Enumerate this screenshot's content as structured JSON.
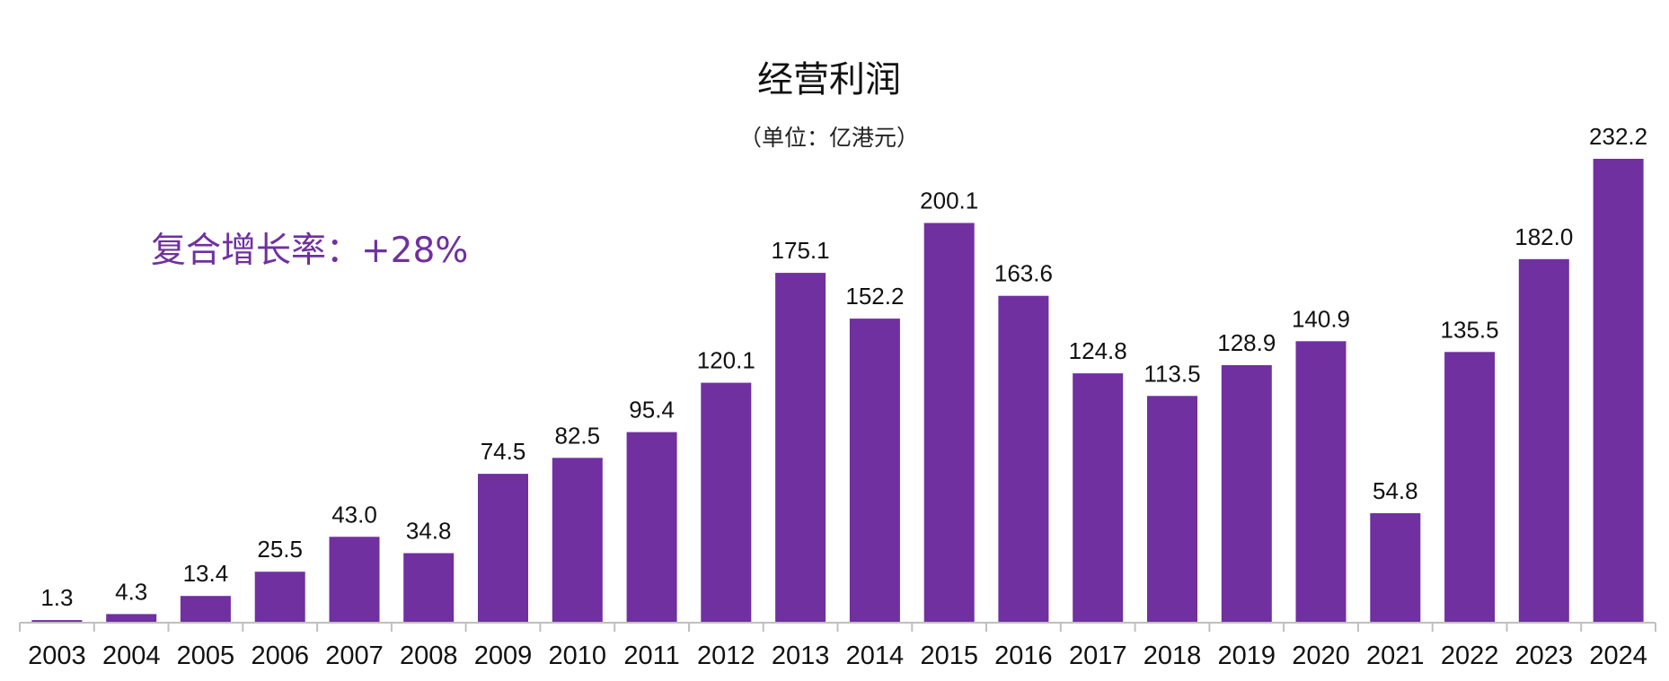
{
  "chart_data": {
    "type": "bar",
    "title": "经营利润",
    "subtitle": "（单位：亿港元）",
    "annotation": "复合增长率：+28%",
    "categories": [
      "2003",
      "2004",
      "2005",
      "2006",
      "2007",
      "2008",
      "2009",
      "2010",
      "2011",
      "2012",
      "2013",
      "2014",
      "2015",
      "2016",
      "2017",
      "2018",
      "2019",
      "2020",
      "2021",
      "2022",
      "2023",
      "2024"
    ],
    "values": [
      1.3,
      4.3,
      13.4,
      25.5,
      43.0,
      34.8,
      74.5,
      82.5,
      95.4,
      120.1,
      175.1,
      152.2,
      200.1,
      163.6,
      124.8,
      113.5,
      128.9,
      140.9,
      54.8,
      135.5,
      182.0,
      232.2
    ],
    "data_labels": [
      "1.3",
      "4.3",
      "13.4",
      "25.5",
      "43.0",
      "34.8",
      "74.5",
      "82.5",
      "95.4",
      "120.1",
      "175.1",
      "152.2",
      "200.1",
      "163.6",
      "124.8",
      "113.5",
      "128.9",
      "140.9",
      "54.8",
      "135.5",
      "182.0",
      "232.2"
    ],
    "xlabel": "",
    "ylabel": "",
    "ylim": [
      0,
      232.2
    ],
    "grid": false,
    "bar_color": "#7030a0",
    "annotation_color": "#7030a0",
    "axis_color": "#bfbfbf"
  }
}
